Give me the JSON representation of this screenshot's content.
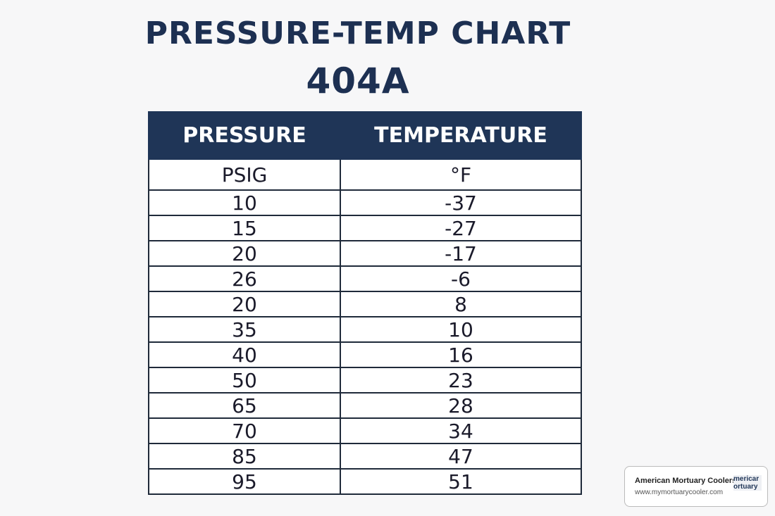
{
  "header": {
    "title": "PRESSURE-TEMP CHART",
    "subtitle": "404A"
  },
  "table": {
    "columns": [
      "PRESSURE",
      "TEMPERATURE"
    ],
    "units": [
      "PSIG",
      "°F"
    ],
    "rows": [
      [
        10,
        -37
      ],
      [
        15,
        -27
      ],
      [
        20,
        -17
      ],
      [
        26,
        -6
      ],
      [
        20,
        8
      ],
      [
        35,
        10
      ],
      [
        40,
        16
      ],
      [
        50,
        23
      ],
      [
        65,
        28
      ],
      [
        70,
        34
      ],
      [
        85,
        47
      ],
      [
        95,
        51
      ]
    ]
  },
  "watermark": {
    "name": "American Mortuary Coolers",
    "url": "www.mymortuarycooler.com",
    "logo": [
      "mericar",
      "ortuary"
    ]
  }
}
